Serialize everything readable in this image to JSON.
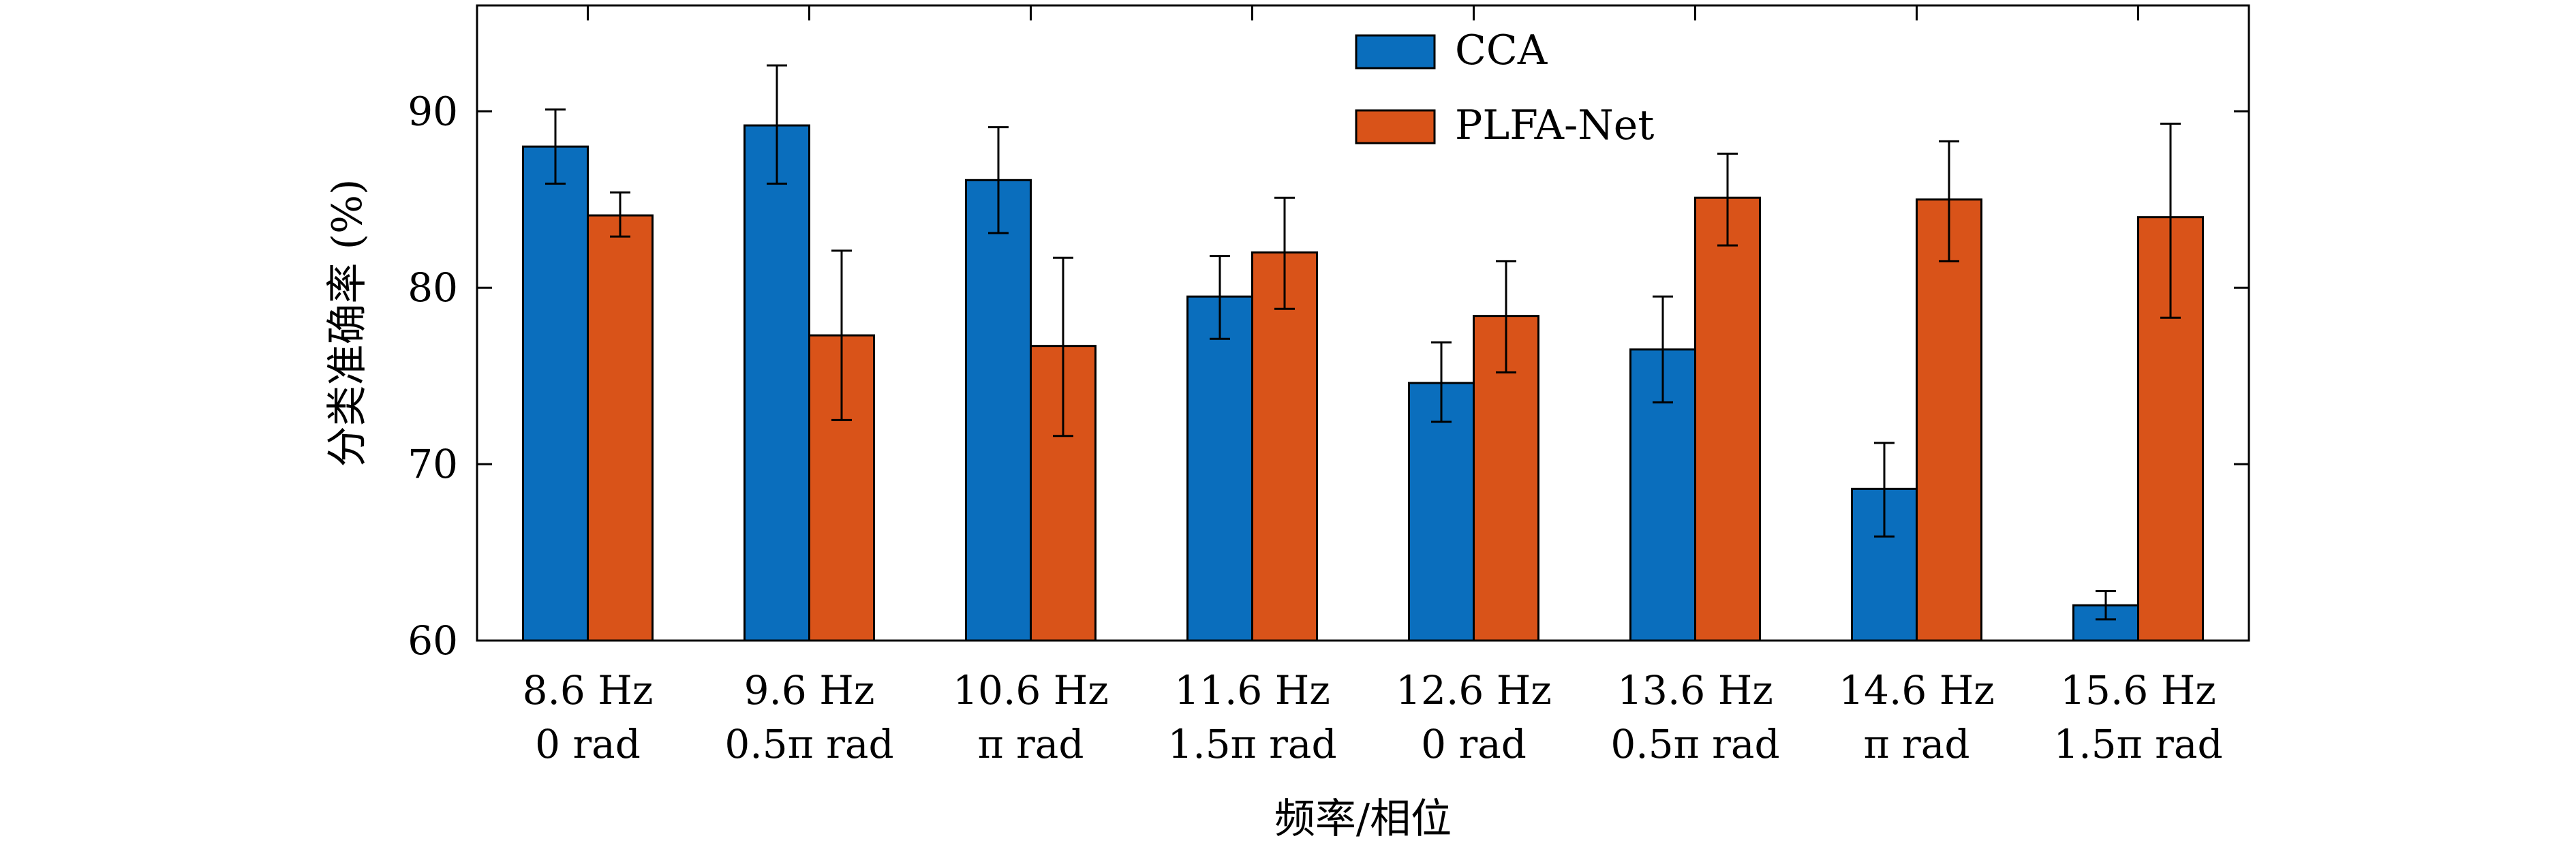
{
  "chart_data": {
    "type": "bar",
    "categories": [
      [
        "8.6 Hz",
        "0 rad"
      ],
      [
        "9.6 Hz",
        "0.5π rad"
      ],
      [
        "10.6 Hz",
        "π rad"
      ],
      [
        "11.6 Hz",
        "1.5π rad"
      ],
      [
        "12.6 Hz",
        "0 rad"
      ],
      [
        "13.6 Hz",
        "0.5π rad"
      ],
      [
        "14.6 Hz",
        "π rad"
      ],
      [
        "15.6 Hz",
        "1.5π rad"
      ]
    ],
    "series": [
      {
        "name": "CCA",
        "color": "#0a6ebd",
        "values": [
          88.0,
          89.2,
          86.1,
          79.5,
          74.6,
          76.5,
          68.6,
          62.0
        ],
        "err_low": [
          85.9,
          85.9,
          83.1,
          77.1,
          72.4,
          73.5,
          65.9,
          61.2
        ],
        "err_high": [
          90.1,
          92.6,
          89.1,
          81.8,
          76.9,
          79.5,
          71.2,
          62.8
        ]
      },
      {
        "name": "PLFA-Net",
        "color": "#d95319",
        "values": [
          84.1,
          77.3,
          76.7,
          82.0,
          78.4,
          85.1,
          85.0,
          84.0
        ],
        "err_low": [
          82.9,
          72.5,
          71.6,
          78.8,
          75.2,
          82.4,
          81.5,
          78.3
        ],
        "err_high": [
          85.4,
          82.1,
          81.7,
          85.1,
          81.5,
          87.6,
          88.3,
          89.3
        ]
      }
    ],
    "xlabel": "频率/相位",
    "ylabel": "分类准确率 (%)",
    "ylim": [
      60,
      96
    ],
    "yticks": [
      60,
      70,
      80,
      90
    ],
    "legend": "top-center",
    "grid": false
  }
}
